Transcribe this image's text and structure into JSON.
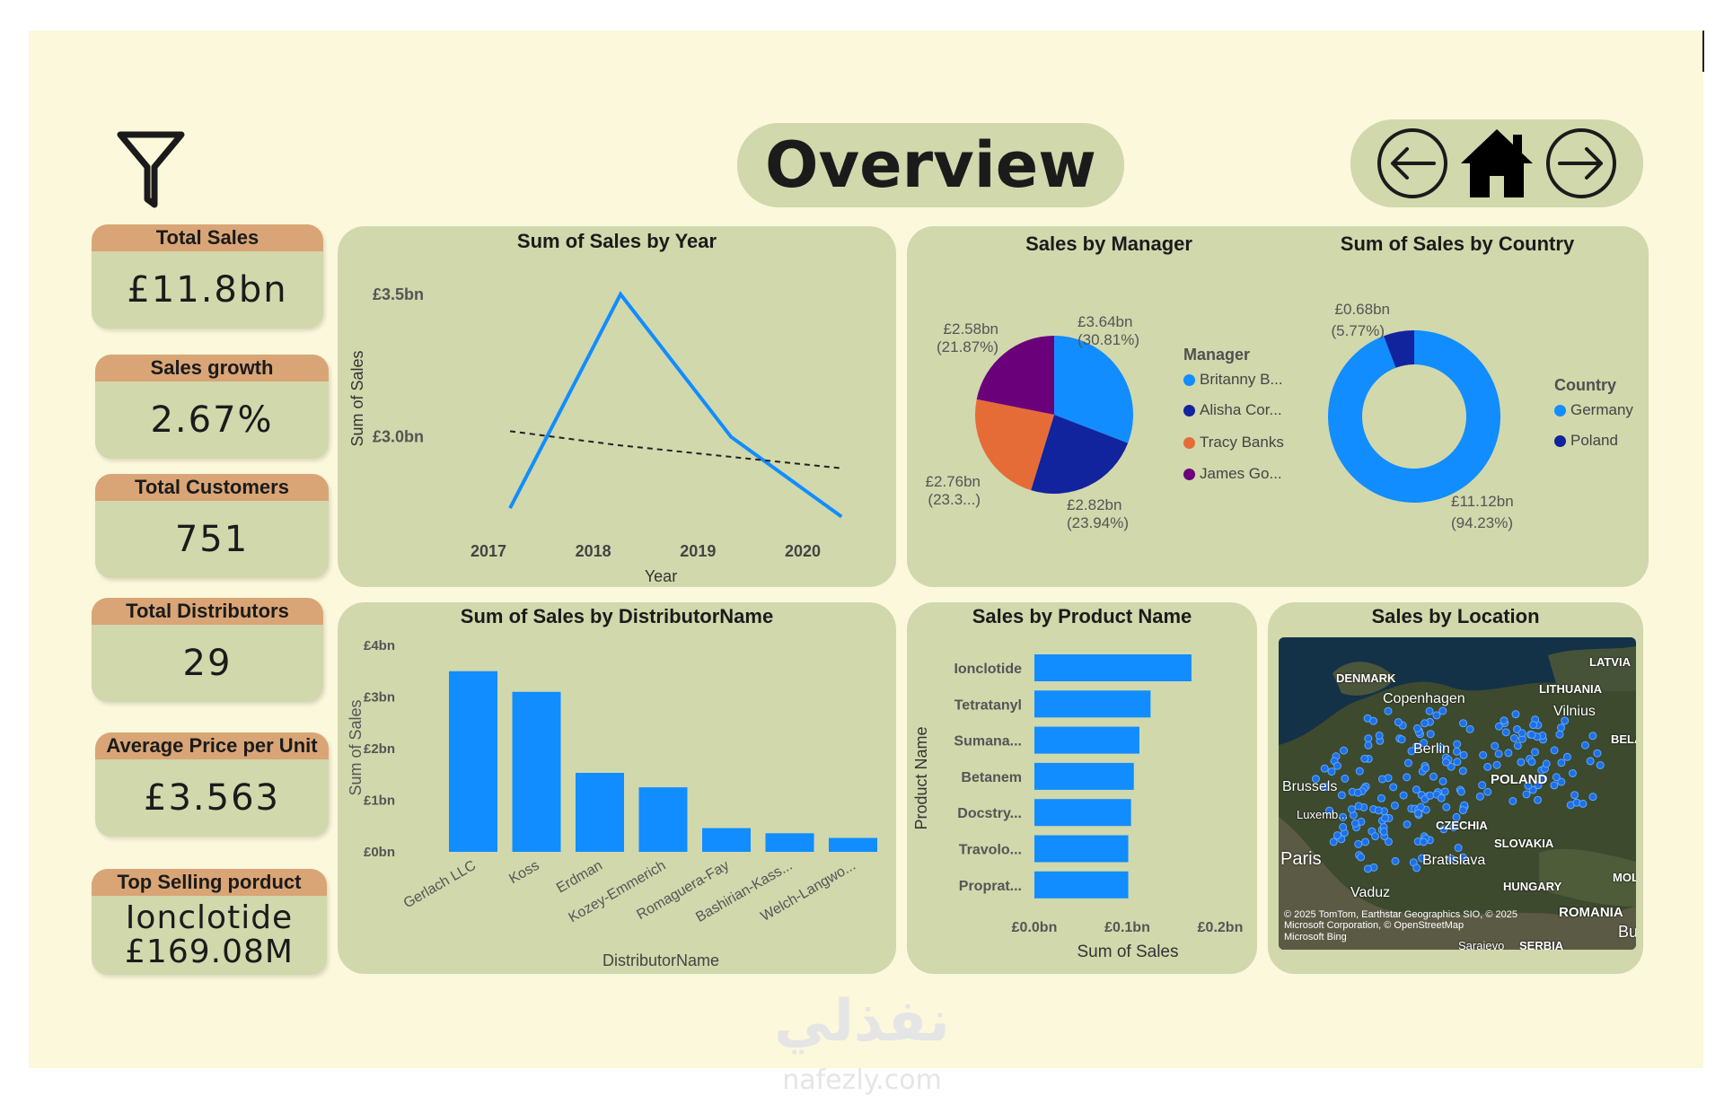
{
  "page": {
    "title": "Overview"
  },
  "nav": {
    "back_icon": "arrow-left-icon",
    "home_icon": "home-icon",
    "forward_icon": "arrow-right-icon",
    "filter_icon": "funnel-icon"
  },
  "kpis": [
    {
      "label": "Total Sales",
      "value": "£11.8bn"
    },
    {
      "label": "Sales growth",
      "value": "2.67%"
    },
    {
      "label": "Total Customers",
      "value": "751"
    },
    {
      "label": "Total Distributors",
      "value": "29"
    },
    {
      "label": "Average Price per Unit",
      "value": "£3.563"
    },
    {
      "label": "Top Selling porduct",
      "value": "Ionclotide",
      "value2": "£169.08M"
    }
  ],
  "watermark": {
    "arabic": "نفذلي",
    "latin": "nafezly.com"
  },
  "colors": {
    "accent": "#118dff",
    "navy": "#12239e",
    "orange": "#e66c37",
    "purple": "#6b007b",
    "panel": "#d1d8ac",
    "header": "#d9a576",
    "background": "#fbf8dc"
  },
  "chart_data": [
    {
      "type": "line",
      "title": "Sum of Sales by Year",
      "xlabel": "Year",
      "ylabel": "Sum of Sales",
      "x": [
        "2017",
        "2018",
        "2019",
        "2020"
      ],
      "series": [
        {
          "values": [
            2.75,
            3.5,
            3.0,
            2.72
          ]
        }
      ],
      "trendline": [
        3.02,
        2.97,
        2.93,
        2.89
      ],
      "yticks": [
        "£3.0bn",
        "£3.5bn"
      ],
      "ylim": [
        2.7,
        3.55
      ],
      "grid": false
    },
    {
      "type": "pie",
      "title": "Sales by Manager",
      "legend_title": "Manager",
      "slices": [
        {
          "label": "Britanny B...",
          "value": 3.64,
          "value_label": "£3.64bn",
          "pct_label": "(30.81%)",
          "color": "#118dff"
        },
        {
          "label": "Alisha Cor...",
          "value": 2.82,
          "value_label": "£2.82bn",
          "pct_label": "(23.94%)",
          "color": "#12239e"
        },
        {
          "label": "Tracy Banks",
          "value": 2.76,
          "value_label": "£2.76bn",
          "pct_label": "(23.3...)",
          "color": "#e66c37"
        },
        {
          "label": "James Go...",
          "value": 2.58,
          "value_label": "£2.58bn",
          "pct_label": "(21.87%)",
          "color": "#6b007b"
        }
      ],
      "legend_position": "right"
    },
    {
      "type": "pie",
      "title": "Sum of Sales by Country",
      "legend_title": "Country",
      "donut": true,
      "slices": [
        {
          "label": "Germany",
          "value": 11.12,
          "value_label": "£11.12bn",
          "pct_label": "(94.23%)",
          "color": "#118dff"
        },
        {
          "label": "Poland",
          "value": 0.68,
          "value_label": "£0.68bn",
          "pct_label": "(5.77%)",
          "color": "#12239e"
        }
      ],
      "legend_position": "right"
    },
    {
      "type": "bar",
      "title": "Sum of Sales by DistributorName",
      "xlabel": "DistributorName",
      "ylabel": "Sum of Sales",
      "categories": [
        "Gerlach LLC",
        "Koss",
        "Erdman",
        "Kozey-Emmerich",
        "Romaguera-Fay",
        "Bashirian-Kass...",
        "Welch-Langwo..."
      ],
      "values": [
        3.5,
        3.1,
        1.53,
        1.25,
        0.46,
        0.36,
        0.27
      ],
      "yticks": [
        "£0bn",
        "£1bn",
        "£2bn",
        "£3bn",
        "£4bn"
      ],
      "ylim": [
        0,
        4
      ]
    },
    {
      "type": "bar",
      "orientation": "horizontal",
      "title": "Sales by Product Name",
      "xlabel": "Sum of Sales",
      "ylabel": "Product Name",
      "categories": [
        "Ionclotide",
        "Tetratanyl",
        "Sumana...",
        "Betanem",
        "Docstry...",
        "Travolo...",
        "Proprat..."
      ],
      "values": [
        0.169,
        0.125,
        0.113,
        0.107,
        0.104,
        0.101,
        0.101
      ],
      "xticks": [
        "£0.0bn",
        "£0.1bn",
        "£0.2bn"
      ],
      "xlim": [
        0,
        0.2
      ]
    }
  ],
  "map": {
    "title": "Sales by Location",
    "labels": [
      "DENMARK",
      "LITHUANIA",
      "LATVIA",
      "BELA",
      "CZECHIA",
      "SLOVAKIA",
      "HUNGARY",
      "ROMANIA",
      "MOL",
      "SERBIA"
    ],
    "cities": [
      "Copenhagen",
      "Vilnius",
      "Berlin",
      "Brussels",
      "Luxemb...",
      "Paris",
      "Bratislava",
      "Vaduz",
      "Sarajevo",
      "POLAND",
      "Bu"
    ],
    "attribution": "© 2025 TomTom, Earthstar Geographics SIO, © 2025 Microsoft Corporation, © OpenStreetMap",
    "attribution_brand": "Microsoft Bing"
  }
}
